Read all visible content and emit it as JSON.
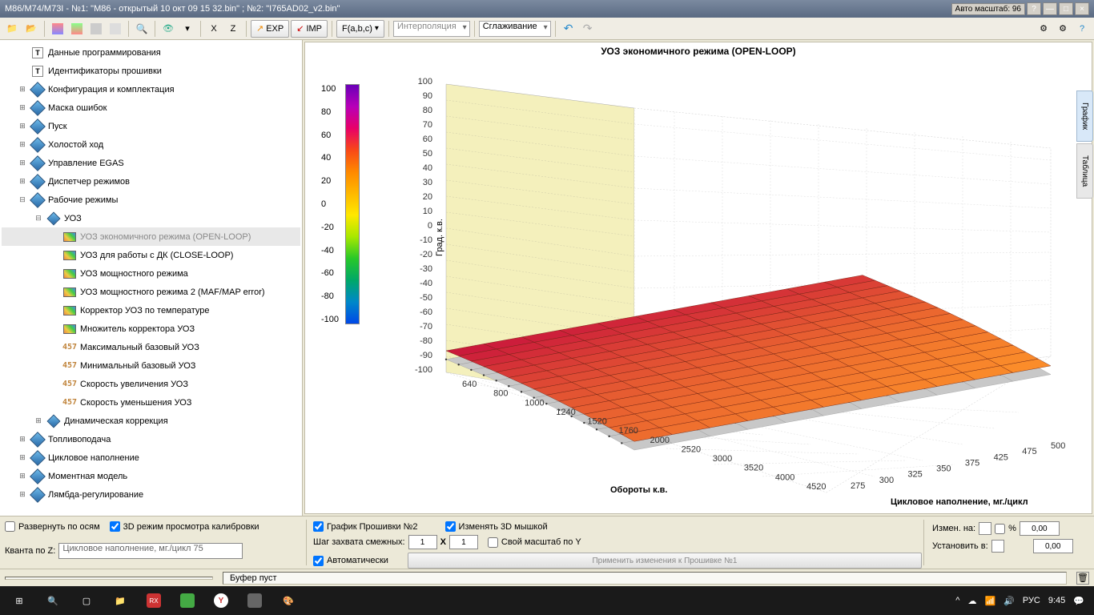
{
  "titlebar": {
    "text": "M86/M74/M73I - №1: \"M86 - открытый 10 окт 09 15 32.bin\" ; №2: \"I765AD02_v2.bin\"",
    "auto_scale": "Авто масштаб: 96"
  },
  "toolbar": {
    "exp": "EXP",
    "imp": "IMP",
    "fabc": "F(a,b,c)",
    "interp": "Интерполяция",
    "smooth": "Сглаживание",
    "x": "X",
    "z": "Z"
  },
  "tree": {
    "items": [
      {
        "indent": 1,
        "exp": "",
        "icon": "T",
        "label": "Данные программирования"
      },
      {
        "indent": 1,
        "exp": "",
        "icon": "T",
        "label": "Идентификаторы прошивки"
      },
      {
        "indent": 1,
        "exp": "+",
        "icon": "diamond",
        "label": "Конфигурация и комплектация"
      },
      {
        "indent": 1,
        "exp": "+",
        "icon": "diamond",
        "label": "Маска ошибок"
      },
      {
        "indent": 1,
        "exp": "+",
        "icon": "diamond",
        "label": "Пуск"
      },
      {
        "indent": 1,
        "exp": "+",
        "icon": "diamond",
        "label": "Холостой ход"
      },
      {
        "indent": 1,
        "exp": "+",
        "icon": "diamond",
        "label": "Управление EGAS"
      },
      {
        "indent": 1,
        "exp": "+",
        "icon": "diamond",
        "label": "Диспетчер режимов"
      },
      {
        "indent": 1,
        "exp": "−",
        "icon": "diamond",
        "label": "Рабочие режимы"
      },
      {
        "indent": 2,
        "exp": "−",
        "icon": "diamond-sm",
        "label": "УОЗ"
      },
      {
        "indent": 3,
        "exp": "",
        "icon": "map",
        "label": "УОЗ экономичного режима (OPEN-LOOP)",
        "selected": true
      },
      {
        "indent": 3,
        "exp": "",
        "icon": "map",
        "label": "УОЗ для работы с ДК (CLOSE-LOOP)"
      },
      {
        "indent": 3,
        "exp": "",
        "icon": "map",
        "label": "УОЗ мощностного режима"
      },
      {
        "indent": 3,
        "exp": "",
        "icon": "map",
        "label": "УОЗ мощностного режима 2 (MAF/MAP error)"
      },
      {
        "indent": 3,
        "exp": "",
        "icon": "map",
        "label": "Корректор УОЗ по температуре"
      },
      {
        "indent": 3,
        "exp": "",
        "icon": "map",
        "label": "Множитель корректора УОЗ"
      },
      {
        "indent": 3,
        "exp": "",
        "icon": "num",
        "label": "Максимальный базовый УОЗ"
      },
      {
        "indent": 3,
        "exp": "",
        "icon": "num",
        "label": "Минимальный базовый УОЗ"
      },
      {
        "indent": 3,
        "exp": "",
        "icon": "num",
        "label": "Скорость увеличения УОЗ"
      },
      {
        "indent": 3,
        "exp": "",
        "icon": "num",
        "label": "Скорость уменьшения УОЗ"
      },
      {
        "indent": 2,
        "exp": "+",
        "icon": "diamond-sm",
        "label": "Динамическая коррекция"
      },
      {
        "indent": 1,
        "exp": "+",
        "icon": "diamond",
        "label": "Топливоподача"
      },
      {
        "indent": 1,
        "exp": "+",
        "icon": "diamond",
        "label": "Цикловое наполнение"
      },
      {
        "indent": 1,
        "exp": "+",
        "icon": "diamond",
        "label": "Моментная модель"
      },
      {
        "indent": 1,
        "exp": "+",
        "icon": "diamond",
        "label": "Лямбда-регулирование"
      }
    ]
  },
  "chart": {
    "title": "УОЗ экономичного режима (OPEN-LOOP)",
    "colorbar_ticks": [
      "100",
      "80",
      "60",
      "40",
      "20",
      "0",
      "-20",
      "-40",
      "-60",
      "-80",
      "-100"
    ],
    "x_label": "Обороты к.в.",
    "y_label": "Цикловое наполнение, мг./цикл",
    "z_label": "Град. к.в.",
    "x_ticks": [
      "640",
      "800",
      "1000",
      "1240",
      "1520",
      "1760",
      "2000",
      "2520",
      "3000",
      "3520",
      "4000",
      "4520"
    ],
    "y_ticks": [
      "275",
      "300",
      "325",
      "350",
      "375",
      "425",
      "475",
      "500"
    ],
    "z_ticks": [
      "100",
      "90",
      "80",
      "70",
      "60",
      "50",
      "40",
      "30",
      "20",
      "10",
      "0",
      "-10",
      "-20",
      "-30",
      "-40",
      "-50",
      "-60",
      "-70",
      "-80",
      "-90",
      "-100"
    ],
    "surface_colors_low": "#c8143c",
    "surface_colors_high": "#ff9628",
    "wall_color": "#f4f0bc",
    "floor_color": "#ffffff",
    "grid_color": "#cccccc"
  },
  "side_tabs": {
    "graph": "График",
    "table": "Таблица"
  },
  "bottom": {
    "expand_axes": "Развернуть по осям",
    "mode_3d": "3D режим просмотра калибровки",
    "quanta_z": "Кванта по Z:",
    "quanta_combo": "Цикловое наполнение, мг./цикл 75",
    "graph_fw2": "График Прошивки №2",
    "change_3d": "Изменять 3D мышкой",
    "step_adj": "Шаг захвата смежных:",
    "step_x": "1",
    "x_lbl": "X",
    "step_y": "1",
    "own_scale_y": "Свой масштаб по Y",
    "auto": "Автоматически",
    "apply_btn": "Применить изменения к Прошивке №1",
    "change_by": "Измен. на:",
    "percent": "%",
    "val1": "0,00",
    "set_to": "Установить в:",
    "val2": "0,00"
  },
  "status": {
    "buffer": "Буфер пуст"
  },
  "taskbar": {
    "lang": "РУС",
    "time": "9:45"
  }
}
